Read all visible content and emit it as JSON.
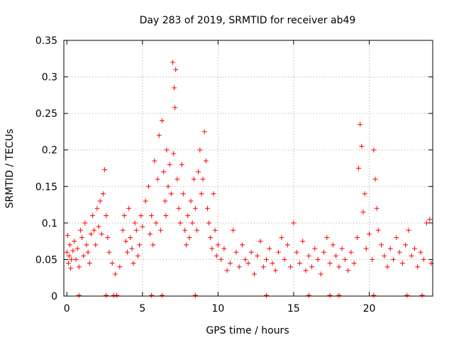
{
  "chart_data": {
    "type": "scatter",
    "title": "Day 283 of 2019, SRMTID for receiver ab49",
    "xlabel": "GPS time / hours",
    "ylabel": "SRMTID / TECUs",
    "xlim": [
      -0.2,
      24.2
    ],
    "ylim": [
      0,
      0.35
    ],
    "xticks": [
      0,
      5,
      10,
      15,
      20
    ],
    "xtick_labels": [
      "0",
      "5",
      "10",
      "15",
      "20"
    ],
    "yticks": [
      0,
      0.05,
      0.1,
      0.15,
      0.2,
      0.25,
      0.3,
      0.35
    ],
    "ytick_labels": [
      "0",
      "0.05",
      "0.1",
      "0.15",
      "0.2",
      "0.25",
      "0.3",
      "0.35"
    ],
    "grid": true,
    "marker": "+",
    "color": "#ff0000",
    "series": [
      {
        "name": "SRMTID",
        "x": [
          0.0,
          0.05,
          0.1,
          0.15,
          0.2,
          0.25,
          0.3,
          0.4,
          0.5,
          0.6,
          0.7,
          0.8,
          0.9,
          1.0,
          1.1,
          1.2,
          1.3,
          1.4,
          1.5,
          1.6,
          1.7,
          1.8,
          1.9,
          2.0,
          2.1,
          2.2,
          2.3,
          2.4,
          2.5,
          2.6,
          2.7,
          2.8,
          3.0,
          3.2,
          3.5,
          3.7,
          3.8,
          3.9,
          4.0,
          4.1,
          4.2,
          4.3,
          4.4,
          4.5,
          4.6,
          4.7,
          4.8,
          4.9,
          5.0,
          5.2,
          5.4,
          5.5,
          5.6,
          5.7,
          5.8,
          5.9,
          6.0,
          6.1,
          6.2,
          6.3,
          6.4,
          6.5,
          6.55,
          6.6,
          6.7,
          6.8,
          6.9,
          7.0,
          7.05,
          7.1,
          7.15,
          7.2,
          7.3,
          7.4,
          7.5,
          7.6,
          7.7,
          7.8,
          7.9,
          8.0,
          8.1,
          8.2,
          8.3,
          8.4,
          8.5,
          8.6,
          8.7,
          8.8,
          8.9,
          9.0,
          9.1,
          9.2,
          9.3,
          9.4,
          9.5,
          9.6,
          9.7,
          9.8,
          9.9,
          10.0,
          10.2,
          10.4,
          10.6,
          10.8,
          11.0,
          11.2,
          11.4,
          11.6,
          11.8,
          12.0,
          12.2,
          12.4,
          12.6,
          12.8,
          13.0,
          13.2,
          13.4,
          13.6,
          13.8,
          14.0,
          14.2,
          14.4,
          14.6,
          14.8,
          15.0,
          15.2,
          15.4,
          15.6,
          15.8,
          16.0,
          16.2,
          16.4,
          16.6,
          16.8,
          17.0,
          17.2,
          17.4,
          17.6,
          17.8,
          18.0,
          18.2,
          18.4,
          18.6,
          18.8,
          19.0,
          19.2,
          19.3,
          19.4,
          19.5,
          19.6,
          19.7,
          19.8,
          20.0,
          20.2,
          20.3,
          20.4,
          20.5,
          20.6,
          20.8,
          21.0,
          21.2,
          21.4,
          21.6,
          21.8,
          22.0,
          22.2,
          22.4,
          22.6,
          22.8,
          23.0,
          23.2,
          23.4,
          23.6,
          23.8,
          24.0,
          24.1,
          0.8,
          2.6,
          3.1,
          3.3,
          5.6,
          6.3,
          8.5,
          13.2,
          16.0,
          17.4,
          18.0,
          20.3,
          22.5,
          23.5
        ],
        "y": [
          0.06,
          0.083,
          0.045,
          0.055,
          0.07,
          0.038,
          0.05,
          0.062,
          0.075,
          0.05,
          0.065,
          0.04,
          0.09,
          0.08,
          0.055,
          0.1,
          0.07,
          0.06,
          0.045,
          0.085,
          0.11,
          0.09,
          0.07,
          0.12,
          0.095,
          0.13,
          0.085,
          0.14,
          0.173,
          0.11,
          0.08,
          0.06,
          0.045,
          0.03,
          0.04,
          0.09,
          0.11,
          0.075,
          0.06,
          0.12,
          0.08,
          0.065,
          0.045,
          0.1,
          0.09,
          0.055,
          0.07,
          0.11,
          0.095,
          0.13,
          0.15,
          0.085,
          0.11,
          0.07,
          0.185,
          0.1,
          0.16,
          0.22,
          0.09,
          0.24,
          0.17,
          0.13,
          0.11,
          0.2,
          0.15,
          0.18,
          0.14,
          0.32,
          0.195,
          0.285,
          0.258,
          0.31,
          0.16,
          0.12,
          0.1,
          0.18,
          0.14,
          0.09,
          0.07,
          0.11,
          0.08,
          0.13,
          0.1,
          0.16,
          0.12,
          0.09,
          0.17,
          0.2,
          0.14,
          0.16,
          0.225,
          0.185,
          0.12,
          0.1,
          0.08,
          0.065,
          0.14,
          0.09,
          0.055,
          0.07,
          0.05,
          0.065,
          0.035,
          0.045,
          0.09,
          0.06,
          0.04,
          0.07,
          0.05,
          0.045,
          0.06,
          0.03,
          0.055,
          0.075,
          0.04,
          0.05,
          0.065,
          0.045,
          0.035,
          0.06,
          0.08,
          0.05,
          0.07,
          0.04,
          0.1,
          0.06,
          0.045,
          0.075,
          0.035,
          0.055,
          0.04,
          0.065,
          0.05,
          0.03,
          0.06,
          0.08,
          0.045,
          0.07,
          0.055,
          0.04,
          0.065,
          0.05,
          0.035,
          0.06,
          0.045,
          0.08,
          0.175,
          0.235,
          0.205,
          0.115,
          0.14,
          0.065,
          0.085,
          0.05,
          0.2,
          0.16,
          0.12,
          0.09,
          0.07,
          0.055,
          0.04,
          0.065,
          0.05,
          0.08,
          0.06,
          0.045,
          0.07,
          0.09,
          0.055,
          0.065,
          0.04,
          0.06,
          0.05,
          0.1,
          0.105,
          0.045,
          0.001,
          0.001,
          0.001,
          0.001,
          0.001,
          0.001,
          0.001,
          0.001,
          0.001,
          0.001,
          0.001,
          0.001,
          0.001,
          0.001
        ]
      }
    ]
  }
}
